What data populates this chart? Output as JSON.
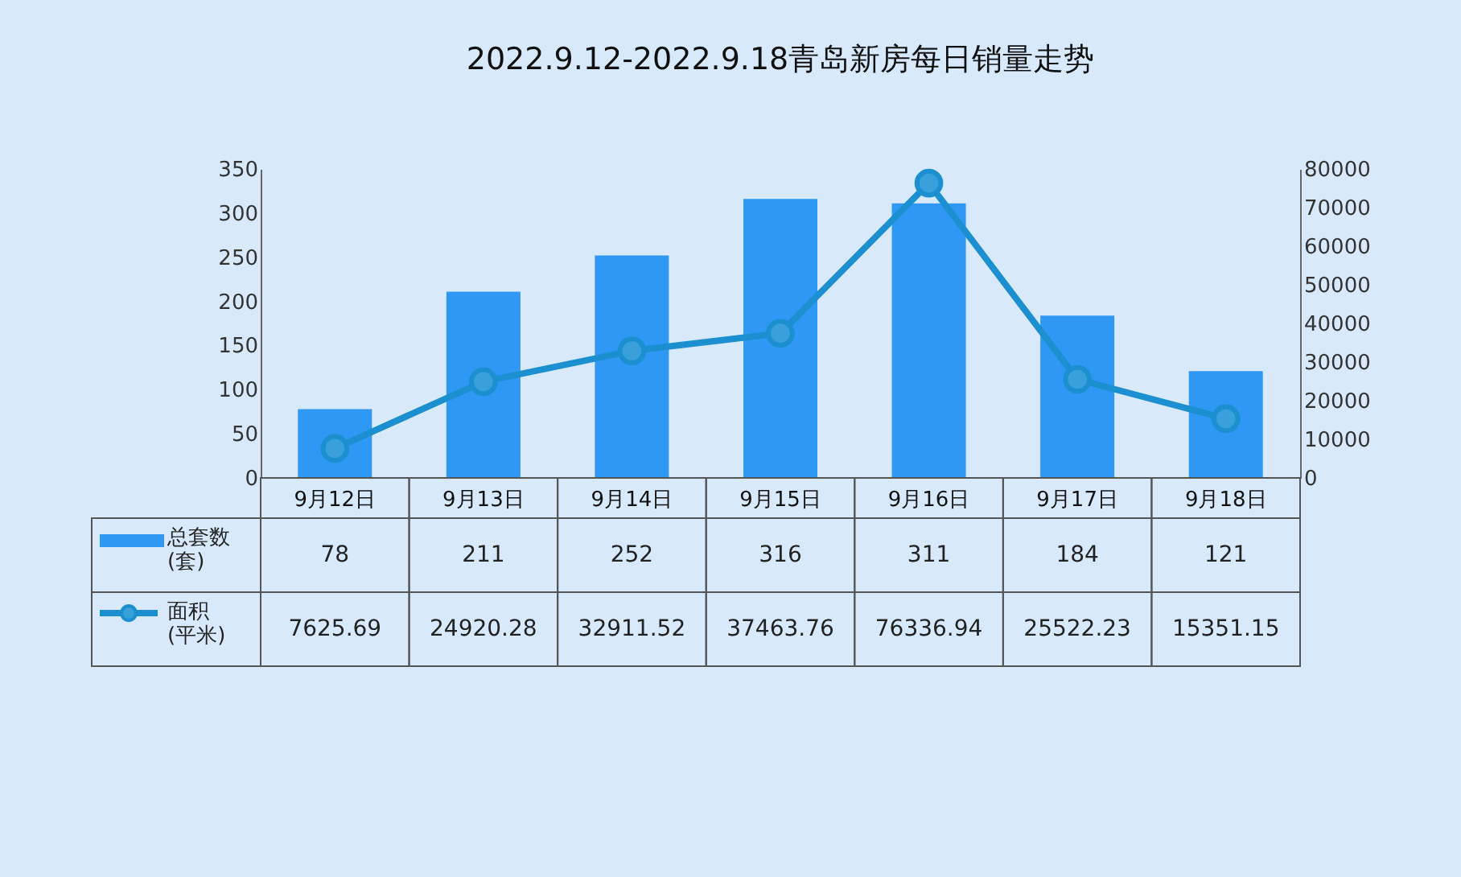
{
  "chart_data": {
    "type": "bar",
    "title": "2022.9.12-2022.9.18青岛新房每日销量走势",
    "categories": [
      "9月12日",
      "9月13日",
      "9月14日",
      "9月15日",
      "9月16日",
      "9月17日",
      "9月18日"
    ],
    "series": [
      {
        "name": "总套数\n(套)",
        "color": "#2f97f4",
        "values": [
          78,
          211,
          252,
          316,
          311,
          184,
          121
        ]
      },
      {
        "name": "面积\n(平米)",
        "type": "line",
        "axis": "y2",
        "color": "#1b8fcf",
        "values": [
          7625.69,
          24920.28,
          32911.52,
          37463.76,
          76336.94,
          25522.23,
          15351.15
        ]
      }
    ],
    "ylim": [
      0,
      350
    ],
    "yticks": [
      0,
      50,
      100,
      150,
      200,
      250,
      300,
      350
    ],
    "y2lim": [
      0,
      80000
    ],
    "y2ticks": [
      0,
      10000,
      20000,
      30000,
      40000,
      50000,
      60000,
      70000,
      80000
    ],
    "data_labels": true,
    "legend": "bottom left",
    "marker": "circle",
    "grid": false
  }
}
